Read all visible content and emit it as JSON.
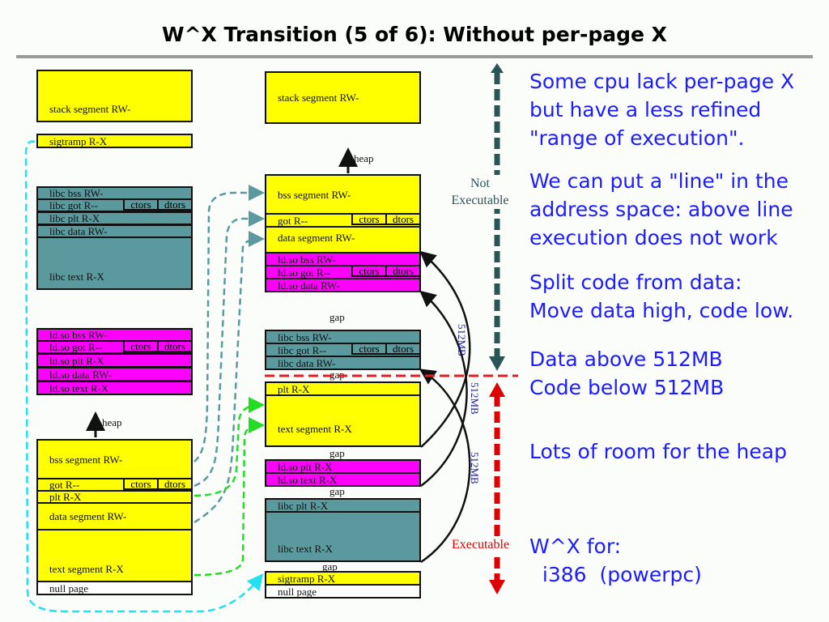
{
  "title": "W^X Transition (5 of 6): Without per-page X",
  "left": {
    "stack": "stack segment RW-",
    "sigtramp": "sigtramp R-X",
    "libc": {
      "bss": "libc bss RW-",
      "got": "libc got R--",
      "plt": "libc plt R-X",
      "data": "libc data RW-",
      "text": "libc text R-X"
    },
    "ldso": {
      "bss": "ld.so bss RW-",
      "got": "ld.so got R--",
      "plt": "ld.so plt R-X",
      "data": "ld.so data RW-",
      "text": "ld.so text R-X"
    },
    "heap": "heap",
    "main": {
      "bss": "bss segment RW-",
      "got": "got R--",
      "plt": "plt R-X",
      "data": "data segment RW-",
      "text": "text segment R-X"
    },
    "null": "null page"
  },
  "right": {
    "stack": "stack segment RW-",
    "heap": "heap",
    "main": {
      "bss": "bss segment RW-",
      "got": "got R--",
      "data": "data segment RW-",
      "plt": "plt R-X",
      "text": "text segment R-X"
    },
    "ldso": {
      "bss": "ld.so bss RW-",
      "got": "ld.so got R--",
      "data": "ld.so data RW-",
      "plt": "ld.so plt R-X",
      "text": "ld.so text R-X"
    },
    "libc": {
      "bss": "libc bss RW-",
      "got": "libc got R--",
      "data": "libc data RW-",
      "plt": "libc plt R-X",
      "text": "libc text R-X"
    },
    "sigtramp": "sigtramp R-X",
    "null": "null page",
    "gap": "gap"
  },
  "ctors": "ctors",
  "dtors": "dtors",
  "not_exec": [
    "Not",
    "Executable"
  ],
  "exec": "Executable",
  "size": "512MB",
  "colors": {
    "rw": "#ffff00",
    "libc": "#5a9a9e",
    "ldso": "#ff00ff",
    "text": "#1c1cff",
    "exec": "#e00000"
  },
  "bullets": [
    "Some cpu lack per-page X\nbut have a less refined\n\"range of execution\".",
    "We can put a \"line\" in the\naddress space: above line\nexecution does not work",
    "Split code from data:\nMove data high, code low.",
    "Data above 512MB\nCode below 512MB",
    "Lots of room for the heap",
    "W^X for:\n  i386  (powerpc)"
  ]
}
